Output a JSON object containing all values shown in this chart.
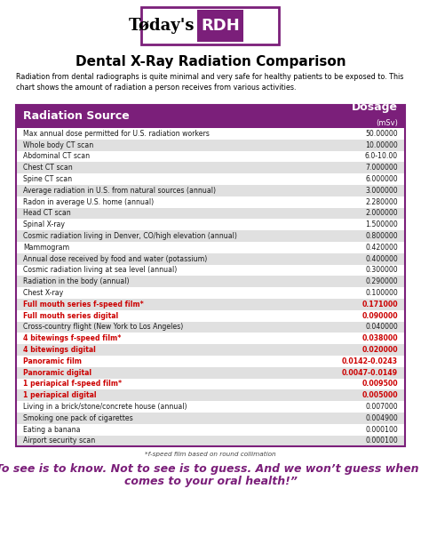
{
  "title": "Dental X-Ray Radiation Comparison",
  "subtitle": "Radiation from dental radiographs is quite minimal and very safe for healthy patients to be exposed to. This\nchart shows the amount of radiation a person receives from various activities.",
  "col1_header": "Radiation Source",
  "col2_header": "Dosage",
  "col2_subheader": "(mSv)",
  "header_bg": "#7b1f7a",
  "header_text_color": "#ffffff",
  "alt_row_color": "#e0e0e0",
  "white_row_color": "#ffffff",
  "red_text_color": "#cc0000",
  "black_text_color": "#1a1a1a",
  "border_color": "#7b1f7a",
  "purple_color": "#7b1f7a",
  "rows": [
    {
      "label": "Max annual dose permitted for U.S. radiation workers",
      "value": "50.00000",
      "red": false,
      "shade": false
    },
    {
      "label": "Whole body CT scan",
      "value": "10.00000",
      "red": false,
      "shade": true
    },
    {
      "label": "Abdominal CT scan",
      "value": "6.0-10.00",
      "red": false,
      "shade": false
    },
    {
      "label": "Chest CT scan",
      "value": "7.000000",
      "red": false,
      "shade": true
    },
    {
      "label": "Spine CT scan",
      "value": "6.000000",
      "red": false,
      "shade": false
    },
    {
      "label": "Average radiation in U.S. from natural sources (annual)",
      "value": "3.000000",
      "red": false,
      "shade": true
    },
    {
      "label": "Radon in average U.S. home (annual)",
      "value": "2.280000",
      "red": false,
      "shade": false
    },
    {
      "label": "Head CT scan",
      "value": "2.000000",
      "red": false,
      "shade": true
    },
    {
      "label": "Spinal X-ray",
      "value": "1.500000",
      "red": false,
      "shade": false
    },
    {
      "label": "Cosmic radiation living in Denver, CO/high elevation (annual)",
      "value": "0.800000",
      "red": false,
      "shade": true
    },
    {
      "label": "Mammogram",
      "value": "0.420000",
      "red": false,
      "shade": false
    },
    {
      "label": "Annual dose received by food and water (potassium)",
      "value": "0.400000",
      "red": false,
      "shade": true
    },
    {
      "label": "Cosmic radiation living at sea level (annual)",
      "value": "0.300000",
      "red": false,
      "shade": false
    },
    {
      "label": "Radiation in the body (annual)",
      "value": "0.290000",
      "red": false,
      "shade": true
    },
    {
      "label": "Chest X-ray",
      "value": "0.100000",
      "red": false,
      "shade": false
    },
    {
      "label": "Full mouth series f-speed film*",
      "value": "0.171000",
      "red": true,
      "shade": true
    },
    {
      "label": "Full mouth series digital",
      "value": "0.090000",
      "red": true,
      "shade": false
    },
    {
      "label": "Cross-country flight (New York to Los Angeles)",
      "value": "0.040000",
      "red": false,
      "shade": true
    },
    {
      "label": "4 bitewings f-speed film*",
      "value": "0.038000",
      "red": true,
      "shade": false
    },
    {
      "label": "4 bitewings digital",
      "value": "0.020000",
      "red": true,
      "shade": true
    },
    {
      "label": "Panoramic film",
      "value": "0.0142-0.0243",
      "red": true,
      "shade": false
    },
    {
      "label": "Panoramic digital",
      "value": "0.0047-0.0149",
      "red": true,
      "shade": true
    },
    {
      "label": "1 periapical f-speed film*",
      "value": "0.009500",
      "red": true,
      "shade": false
    },
    {
      "label": "1 periapical digital",
      "value": "0.005000",
      "red": true,
      "shade": true
    },
    {
      "label": "Living in a brick/stone/concrete house (annual)",
      "value": "0.007000",
      "red": false,
      "shade": false
    },
    {
      "label": "Smoking one pack of cigarettes",
      "value": "0.004900",
      "red": false,
      "shade": true
    },
    {
      "label": "Eating a banana",
      "value": "0.000100",
      "red": false,
      "shade": false
    },
    {
      "label": "Airport security scan",
      "value": "0.000100",
      "red": false,
      "shade": true
    }
  ],
  "footnote": "*f-speed film based on round collimation",
  "quote_line1": "“To see is to know. Not to see is to guess. And we won’t guess when it",
  "quote_line2": "comes to your oral health!”"
}
